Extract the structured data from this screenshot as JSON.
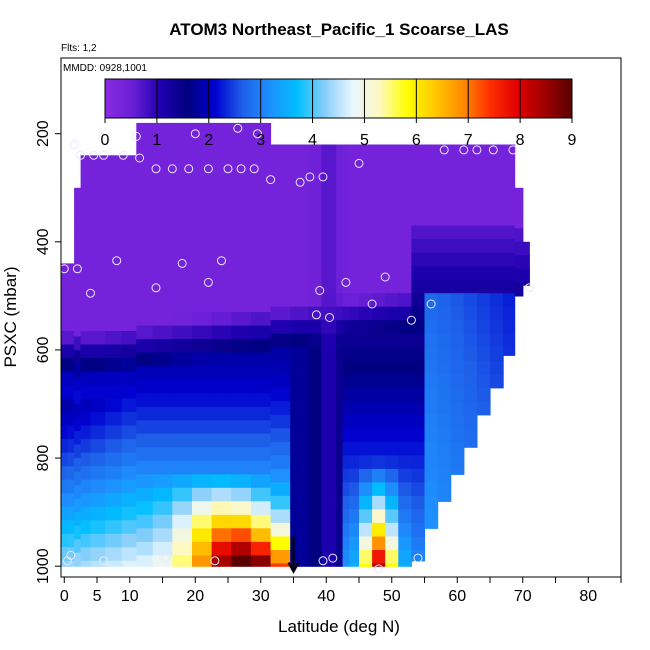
{
  "chart_data": {
    "type": "heatmap",
    "title": "ATOM3 Northeast_Pacific_1 Scoarse_LAS",
    "subtitle_flights": "Flts: 1,2",
    "subtitle_dates": "MMDD: 0928,1001",
    "xlabel": "Latitude (deg N)",
    "ylabel": "PSXC (mbar)",
    "xlim": [
      -0.5,
      85
    ],
    "ylim": [
      1020,
      60
    ],
    "x_ticks": [
      0,
      10,
      20,
      30,
      40,
      50,
      60,
      70,
      80
    ],
    "x_ticks_minor": [
      5,
      15,
      25,
      35,
      45,
      55,
      65,
      75,
      85
    ],
    "x_tick_labels": [
      "0",
      "5",
      "10",
      "20",
      "30",
      "40",
      "50",
      "60",
      "70",
      "80"
    ],
    "x_tick_label_values": [
      0,
      5,
      10,
      20,
      30,
      40,
      50,
      60,
      70,
      80
    ],
    "y_ticks": [
      200,
      400,
      600,
      800,
      1000
    ],
    "y_tick_labels": [
      "200",
      "400",
      "600",
      "800",
      "1000"
    ],
    "colorbar": {
      "min": 0,
      "max": 9,
      "tick_values": [
        0,
        1,
        2,
        3,
        4,
        5,
        6,
        7,
        8,
        9
      ],
      "tick_labels": [
        "0",
        "1",
        "2",
        "3",
        "4",
        "5",
        "6",
        "7",
        "8",
        "9"
      ],
      "stops": [
        "#8a2be2",
        "#6a1fd6",
        "#1f00b0",
        "#000080",
        "#0000d0",
        "#1e5fe8",
        "#1e90ff",
        "#00bfff",
        "#87cefa",
        "#e8f6ff",
        "#fff8c0",
        "#ffff00",
        "#ffc800",
        "#ff8c00",
        "#ff3000",
        "#e00000",
        "#a00000",
        "#5a0000"
      ]
    },
    "pressure_levels": [
      200,
      250,
      300,
      350,
      400,
      450,
      500,
      550,
      600,
      650,
      700,
      750,
      800,
      850,
      900,
      950,
      1000
    ],
    "profiles": [
      {
        "lat": 0,
        "top": 440,
        "bottom": 1000
      },
      {
        "lat": 1,
        "top": 440,
        "bottom": 1000
      },
      {
        "lat": 2,
        "top": 300,
        "bottom": 1000
      },
      {
        "lat": 3,
        "top": 240,
        "bottom": 1000
      },
      {
        "lat": 5,
        "top": 240,
        "bottom": 1000
      },
      {
        "lat": 7.5,
        "top": 240,
        "bottom": 1000
      },
      {
        "lat": 10,
        "top": 240,
        "bottom": 1000
      },
      {
        "lat": 12,
        "top": 180,
        "bottom": 1000
      },
      {
        "lat": 15,
        "top": 180,
        "bottom": 1000
      },
      {
        "lat": 18,
        "top": 180,
        "bottom": 1000
      },
      {
        "lat": 21,
        "top": 180,
        "bottom": 1000
      },
      {
        "lat": 24,
        "top": 180,
        "bottom": 1000
      },
      {
        "lat": 27,
        "top": 180,
        "bottom": 1000
      },
      {
        "lat": 30,
        "top": 180,
        "bottom": 1000
      },
      {
        "lat": 33,
        "top": 220,
        "bottom": 1000
      },
      {
        "lat": 36,
        "top": 220,
        "bottom": 1000
      },
      {
        "lat": 38.5,
        "top": 220,
        "bottom": 1000
      },
      {
        "lat": 40,
        "top": 220,
        "bottom": 1000
      },
      {
        "lat": 41,
        "top": 220,
        "bottom": 1000
      },
      {
        "lat": 42,
        "top": 220,
        "bottom": 1000
      },
      {
        "lat": 43,
        "top": 220,
        "bottom": 1000
      },
      {
        "lat": 44,
        "top": 220,
        "bottom": 1000
      },
      {
        "lat": 46,
        "top": 220,
        "bottom": 1000
      },
      {
        "lat": 48,
        "top": 220,
        "bottom": 1000
      },
      {
        "lat": 50,
        "top": 220,
        "bottom": 1000
      },
      {
        "lat": 52,
        "top": 220,
        "bottom": 1000
      },
      {
        "lat": 54,
        "top": 220,
        "bottom": 990
      },
      {
        "lat": 56,
        "top": 220,
        "bottom": 930
      },
      {
        "lat": 58,
        "top": 220,
        "bottom": 880
      },
      {
        "lat": 60,
        "top": 220,
        "bottom": 830
      },
      {
        "lat": 62,
        "top": 220,
        "bottom": 780
      },
      {
        "lat": 64,
        "top": 220,
        "bottom": 720
      },
      {
        "lat": 66,
        "top": 220,
        "bottom": 670
      },
      {
        "lat": 68,
        "top": 220,
        "bottom": 610
      },
      {
        "lat": 69.5,
        "top": 300,
        "bottom": 500
      },
      {
        "lat": 70.5,
        "top": 400,
        "bottom": 480
      }
    ],
    "observations": [
      {
        "lat": 0,
        "p": 450
      },
      {
        "lat": 1.5,
        "p": 220
      },
      {
        "lat": 2.5,
        "p": 240
      },
      {
        "lat": 2,
        "p": 450
      },
      {
        "lat": 4.5,
        "p": 240
      },
      {
        "lat": 6,
        "p": 240
      },
      {
        "lat": 9,
        "p": 240
      },
      {
        "lat": 11,
        "p": 205
      },
      {
        "lat": 11.5,
        "p": 245
      },
      {
        "lat": 14,
        "p": 265
      },
      {
        "lat": 16.5,
        "p": 265
      },
      {
        "lat": 19,
        "p": 265
      },
      {
        "lat": 20,
        "p": 200
      },
      {
        "lat": 22,
        "p": 265
      },
      {
        "lat": 25,
        "p": 265
      },
      {
        "lat": 26.5,
        "p": 190
      },
      {
        "lat": 27,
        "p": 265
      },
      {
        "lat": 29,
        "p": 265
      },
      {
        "lat": 29.5,
        "p": 200
      },
      {
        "lat": 31.5,
        "p": 285
      },
      {
        "lat": 36,
        "p": 290
      },
      {
        "lat": 37.5,
        "p": 280
      },
      {
        "lat": 39.5,
        "p": 280
      },
      {
        "lat": 45,
        "p": 255
      },
      {
        "lat": 58,
        "p": 230
      },
      {
        "lat": 61,
        "p": 230
      },
      {
        "lat": 63,
        "p": 230
      },
      {
        "lat": 65.5,
        "p": 230
      },
      {
        "lat": 68.5,
        "p": 230
      },
      {
        "lat": 4,
        "p": 495
      },
      {
        "lat": 8,
        "p": 435
      },
      {
        "lat": 14,
        "p": 485
      },
      {
        "lat": 18,
        "p": 440
      },
      {
        "lat": 22,
        "p": 475
      },
      {
        "lat": 24,
        "p": 435
      },
      {
        "lat": 39,
        "p": 490
      },
      {
        "lat": 38.5,
        "p": 535
      },
      {
        "lat": 40.5,
        "p": 540
      },
      {
        "lat": 43,
        "p": 475
      },
      {
        "lat": 47,
        "p": 515
      },
      {
        "lat": 49,
        "p": 465
      },
      {
        "lat": 53,
        "p": 545
      },
      {
        "lat": 56,
        "p": 515
      },
      {
        "lat": 71,
        "p": 485
      },
      {
        "lat": 1,
        "p": 980
      },
      {
        "lat": 0.5,
        "p": 990
      },
      {
        "lat": 6,
        "p": 990
      },
      {
        "lat": 15.5,
        "p": 985
      },
      {
        "lat": 23,
        "p": 990
      },
      {
        "lat": 39.5,
        "p": 990
      },
      {
        "lat": 41,
        "p": 985
      },
      {
        "lat": 48,
        "p": 1005
      },
      {
        "lat": 54,
        "p": 985
      }
    ],
    "marker_arrow": {
      "lat": 35,
      "p_from": 945,
      "p_to": 1010
    }
  }
}
